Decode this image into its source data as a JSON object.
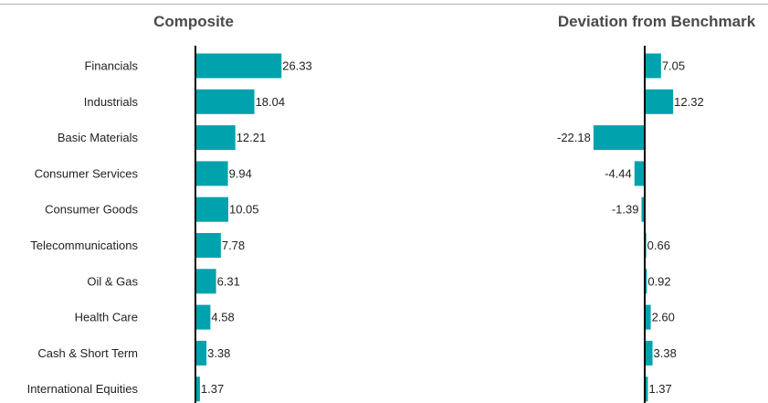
{
  "chart_data": [
    {
      "type": "bar",
      "orientation": "horizontal",
      "title": "Composite",
      "categories": [
        "Financials",
        "Industrials",
        "Basic Materials",
        "Consumer Services",
        "Consumer Goods",
        "Telecommunications",
        "Oil & Gas",
        "Health Care",
        "Cash & Short Term",
        "International Equities"
      ],
      "values": [
        26.33,
        18.04,
        12.21,
        9.94,
        10.05,
        7.78,
        6.31,
        4.58,
        3.38,
        1.37
      ],
      "value_labels": [
        "26.33",
        "18.04",
        "12.21",
        "9.94",
        "10.05",
        "7.78",
        "6.31",
        "4.58",
        "3.38",
        "1.37"
      ],
      "bar_color": "#00a3ad",
      "grid": false
    },
    {
      "type": "bar",
      "orientation": "horizontal",
      "title": "Deviation from Benchmark",
      "categories": [
        "Financials",
        "Industrials",
        "Basic Materials",
        "Consumer Services",
        "Consumer Goods",
        "Telecommunications",
        "Oil & Gas",
        "Health Care",
        "Cash & Short Term",
        "International Equities"
      ],
      "values": [
        7.05,
        12.32,
        -22.18,
        -4.44,
        -1.39,
        0.66,
        0.92,
        2.6,
        3.38,
        1.37
      ],
      "value_labels": [
        "7.05",
        "12.32",
        "-22.18",
        "-4.44",
        "-1.39",
        "0.66",
        "0.92",
        "2.60",
        "3.38",
        "1.37"
      ],
      "bar_color": "#00a3ad",
      "grid": false
    }
  ]
}
